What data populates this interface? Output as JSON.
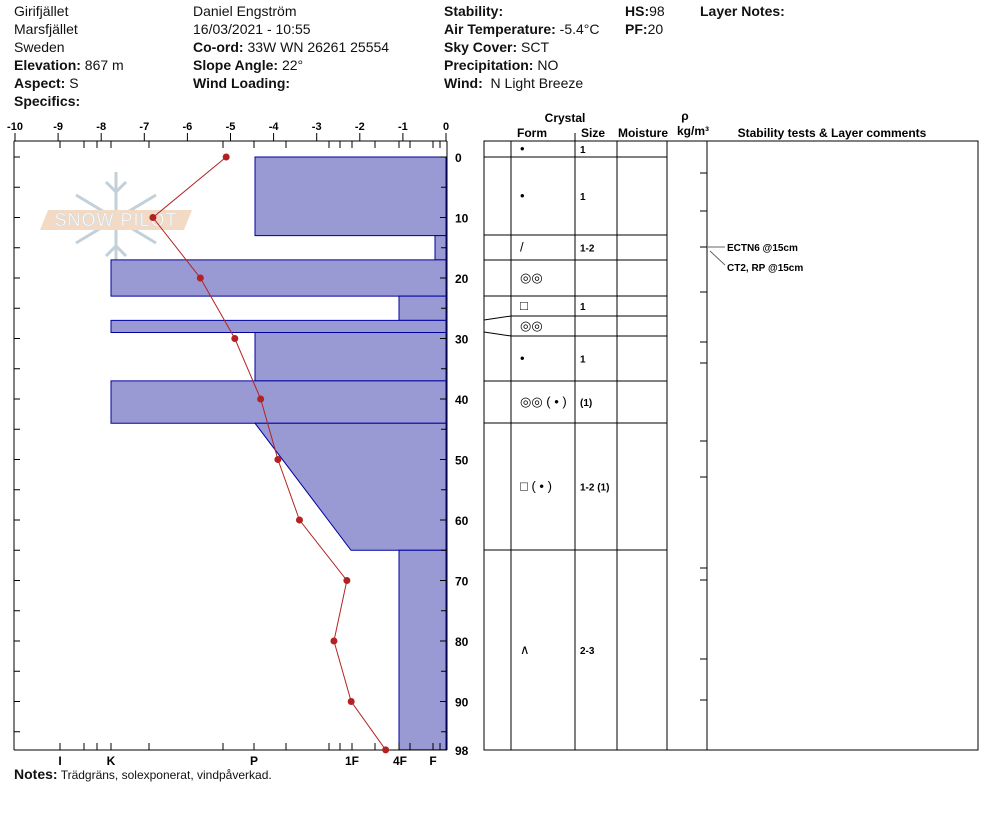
{
  "header": {
    "location": "Girifjället",
    "area": "Marsfjället",
    "country": "Sweden",
    "elevation_label": "Elevation:",
    "elevation": "867 m",
    "aspect_label": "Aspect:",
    "aspect": "S",
    "specifics_label": "Specifics:",
    "observer": "Daniel Engström",
    "datetime": "16/03/2021 - 10:55",
    "coord_label": "Co-ord:",
    "coord": "33W WN 26261 25554",
    "slope_label": "Slope Angle:",
    "slope": "22°",
    "wind_loading_label": "Wind Loading:",
    "stability_label": "Stability:",
    "air_temp_label": "Air Temperature:",
    "air_temp": "-5.4°C",
    "sky_label": "Sky Cover:",
    "sky": "SCT",
    "precip_label": "Precipitation:",
    "precip": "NO",
    "wind_label": "Wind:",
    "wind": "N Light Breeze",
    "hs_label": "HS:",
    "hs": "98",
    "pf_label": "PF:",
    "pf": "20",
    "layer_notes_label": "Layer Notes:"
  },
  "notes_label": "Notes:",
  "notes": "Trädgräns, solexponerat, vindpåverkad.",
  "logo_text": "SNOW PILOT",
  "table_headers": {
    "crystal": "Crystal",
    "form": "Form",
    "size": "Size",
    "moisture": "Moisture",
    "rho": "ρ",
    "density_unit": "kg/m³",
    "comments": "Stability tests & Layer comments"
  },
  "colors": {
    "hardness_fill": "#9999d4",
    "hardness_stroke": "#0000a0",
    "temperature": "#b22222"
  },
  "chart_data": {
    "type": "line",
    "x_axis_top": {
      "ticks": [
        "-10",
        "-9",
        "-8",
        "-7",
        "-6",
        "-5",
        "-4",
        "-3",
        "-2",
        "-1",
        "0"
      ],
      "range": [
        -10,
        0
      ]
    },
    "hardness_axis": {
      "ticks": [
        "I",
        "K",
        "P",
        "1F",
        "4F",
        "F"
      ]
    },
    "depth_axis": {
      "ticks": [
        "0",
        "10",
        "20",
        "30",
        "40",
        "50",
        "60",
        "70",
        "80",
        "90",
        "98"
      ],
      "range": [
        0,
        98
      ]
    },
    "temperature_profile": [
      {
        "depth": 0,
        "temp": -5.1
      },
      {
        "depth": 10,
        "temp": -6.8
      },
      {
        "depth": 20,
        "temp": -5.7
      },
      {
        "depth": 30,
        "temp": -4.9
      },
      {
        "depth": 40,
        "temp": -4.3
      },
      {
        "depth": 50,
        "temp": -3.9
      },
      {
        "depth": 60,
        "temp": -3.4
      },
      {
        "depth": 70,
        "temp": -2.3
      },
      {
        "depth": 80,
        "temp": -2.6
      },
      {
        "depth": 90,
        "temp": -2.2
      },
      {
        "depth": 98,
        "temp": -1.4
      }
    ],
    "hardness_layers": [
      {
        "top": 0,
        "bottom": 13,
        "hardness_top": "P",
        "hardness_bottom": "P"
      },
      {
        "top": 13,
        "bottom": 17,
        "hardness_top": "F",
        "hardness_bottom": "F"
      },
      {
        "top": 17,
        "bottom": 23,
        "hardness_top": "K",
        "hardness_bottom": "K"
      },
      {
        "top": 23,
        "bottom": 27,
        "hardness_top": "4F",
        "hardness_bottom": "4F"
      },
      {
        "top": 27,
        "bottom": 29,
        "hardness_top": "K",
        "hardness_bottom": "K"
      },
      {
        "top": 29,
        "bottom": 37,
        "hardness_top": "P",
        "hardness_bottom": "P"
      },
      {
        "top": 37,
        "bottom": 44,
        "hardness_top": "K",
        "hardness_bottom": "K"
      },
      {
        "top": 44,
        "bottom": 65,
        "hardness_top": "P",
        "hardness_bottom": "1F"
      },
      {
        "top": 65,
        "bottom": 98,
        "hardness_top": "4F",
        "hardness_bottom": "4F"
      }
    ]
  },
  "layers_table": [
    {
      "form": "•",
      "size": "1"
    },
    {
      "form": "•",
      "size": "1"
    },
    {
      "form": "/",
      "size": "1-2"
    },
    {
      "form": "◎◎",
      "size": ""
    },
    {
      "form": "□",
      "size": "1"
    },
    {
      "form": "◎◎",
      "size": ""
    },
    {
      "form": "•",
      "size": "1"
    },
    {
      "form": "◎◎ ( • )",
      "size": "(1)"
    },
    {
      "form": "□ ( • )",
      "size": "1-2 (1)"
    },
    {
      "form": "∧",
      "size": "2-3"
    }
  ],
  "stability_tests": [
    "ECTN6 @15cm",
    "CT2, RP @15cm"
  ]
}
